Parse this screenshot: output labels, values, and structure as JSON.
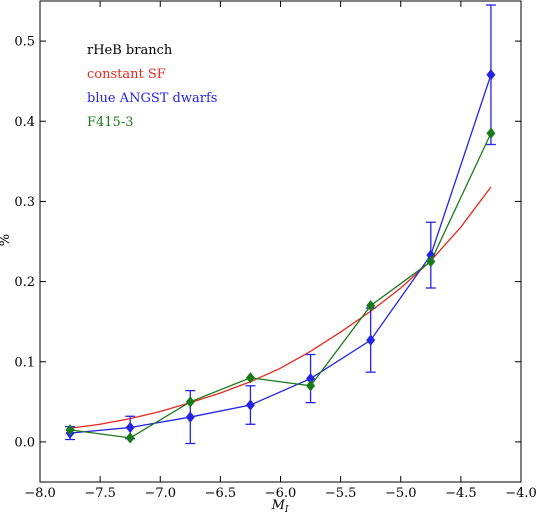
{
  "chart_data": {
    "type": "line",
    "xlabel": "M_I",
    "xlabel_main": "M",
    "xlabel_sub": "I",
    "ylabel": "%",
    "xlim": [
      -8.0,
      -4.0
    ],
    "ylim": [
      -0.05,
      0.55
    ],
    "xticks": [
      -8.0,
      -7.5,
      -7.0,
      -6.5,
      -6.0,
      -5.5,
      -5.0,
      -4.5,
      -4.0
    ],
    "xtick_labels": [
      "−8.0",
      "−7.5",
      "−7.0",
      "−6.5",
      "−6.0",
      "−5.5",
      "−5.0",
      "−4.5",
      "−4.0"
    ],
    "yticks": [
      0.0,
      0.1,
      0.2,
      0.3,
      0.4,
      0.5
    ],
    "ytick_labels": [
      "0.0",
      "0.1",
      "0.2",
      "0.3",
      "0.4",
      "0.5"
    ],
    "grid": false,
    "legend_position": "top-left",
    "annotation": "rHeB branch",
    "series": [
      {
        "name": "constant SF",
        "kind": "curve",
        "color": "#e8281e",
        "x": [
          -7.75,
          -7.5,
          -7.25,
          -7.0,
          -6.75,
          -6.5,
          -6.25,
          -6.0,
          -5.75,
          -5.5,
          -5.25,
          -5.0,
          -4.75,
          -4.5,
          -4.25
        ],
        "y": [
          0.017,
          0.022,
          0.029,
          0.038,
          0.049,
          0.061,
          0.075,
          0.092,
          0.113,
          0.137,
          0.163,
          0.192,
          0.226,
          0.268,
          0.318
        ]
      },
      {
        "name": "blue ANGST dwarfs",
        "kind": "markers",
        "color": "#2424e6",
        "x": [
          -7.75,
          -7.25,
          -6.75,
          -6.25,
          -5.75,
          -5.25,
          -4.75,
          -4.25
        ],
        "y": [
          0.011,
          0.018,
          0.031,
          0.046,
          0.079,
          0.127,
          0.233,
          0.458
        ],
        "yerr": [
          0.008,
          0.014,
          0.033,
          0.024,
          0.03,
          0.04,
          0.041,
          0.087
        ]
      },
      {
        "name": "F415-3",
        "kind": "markers",
        "color": "#1a7a1a",
        "x": [
          -7.75,
          -7.25,
          -6.75,
          -6.25,
          -5.75,
          -5.25,
          -4.75,
          -4.25
        ],
        "y": [
          0.015,
          0.005,
          0.05,
          0.08,
          0.07,
          0.17,
          0.225,
          0.385
        ]
      }
    ]
  }
}
